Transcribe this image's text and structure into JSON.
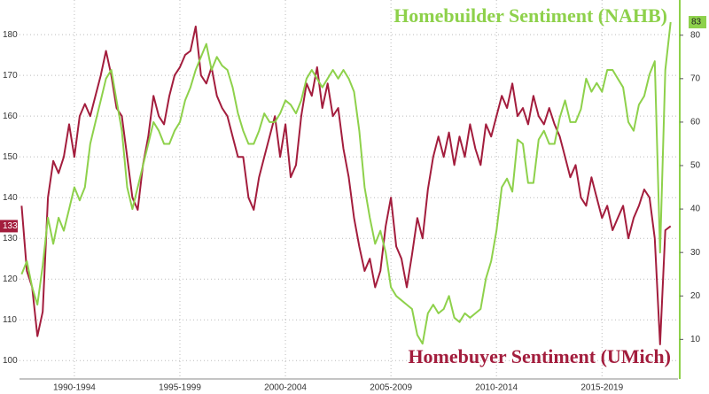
{
  "chart_data": {
    "type": "line",
    "series": [
      {
        "name": "Homebuyer Sentiment (UMich)",
        "color": "#a31d3d",
        "axis": "y",
        "values": [
          138,
          122,
          118,
          106,
          112,
          140,
          149,
          146,
          150,
          158,
          150,
          160,
          163,
          160,
          165,
          170,
          176,
          170,
          162,
          160,
          150,
          140,
          137,
          148,
          155,
          165,
          160,
          158,
          165,
          170,
          172,
          175,
          176,
          182,
          170,
          168,
          172,
          165,
          162,
          160,
          155,
          150,
          150,
          140,
          137,
          145,
          150,
          155,
          160,
          150,
          158,
          145,
          148,
          160,
          168,
          165,
          172,
          162,
          168,
          160,
          162,
          152,
          145,
          135,
          128,
          122,
          125,
          118,
          122,
          133,
          140,
          128,
          125,
          118,
          126,
          135,
          130,
          142,
          150,
          155,
          150,
          156,
          148,
          155,
          150,
          158,
          152,
          148,
          158,
          155,
          160,
          165,
          162,
          168,
          160,
          162,
          158,
          165,
          160,
          158,
          162,
          158,
          155,
          150,
          145,
          148,
          140,
          138,
          145,
          140,
          135,
          138,
          132,
          135,
          138,
          130,
          135,
          138,
          142,
          140,
          130,
          104,
          132,
          133
        ]
      },
      {
        "name": "Homebuilder Sentiment (NAHB)",
        "color": "#8ed14b",
        "axis": "y2",
        "values": [
          25,
          28,
          22,
          18,
          27,
          38,
          32,
          38,
          35,
          40,
          45,
          42,
          45,
          55,
          60,
          65,
          70,
          72,
          65,
          58,
          45,
          40,
          45,
          50,
          55,
          60,
          58,
          55,
          55,
          58,
          60,
          65,
          68,
          72,
          75,
          78,
          72,
          75,
          73,
          72,
          68,
          62,
          58,
          55,
          55,
          58,
          62,
          60,
          60,
          62,
          65,
          64,
          62,
          65,
          70,
          72,
          70,
          68,
          70,
          72,
          70,
          72,
          70,
          67,
          58,
          45,
          38,
          32,
          35,
          30,
          22,
          20,
          19,
          18,
          17,
          11,
          9,
          16,
          18,
          16,
          17,
          20,
          15,
          14,
          16,
          15,
          16,
          17,
          24,
          28,
          35,
          45,
          47,
          44,
          56,
          55,
          46,
          46,
          56,
          58,
          55,
          55,
          61,
          65,
          60,
          60,
          63,
          70,
          67,
          69,
          67,
          72,
          72,
          70,
          68,
          60,
          58,
          64,
          66,
          71,
          74,
          30,
          72,
          83
        ]
      }
    ],
    "x": [
      1990,
      1990.25,
      1990.5,
      1990.75,
      1991,
      1991.25,
      1991.5,
      1991.75,
      1992,
      1992.25,
      1992.5,
      1992.75,
      1993,
      1993.25,
      1993.5,
      1993.75,
      1994,
      1994.25,
      1994.5,
      1994.75,
      1995,
      1995.25,
      1995.5,
      1995.75,
      1996,
      1996.25,
      1996.5,
      1996.75,
      1997,
      1997.25,
      1997.5,
      1997.75,
      1998,
      1998.25,
      1998.5,
      1998.75,
      1999,
      1999.25,
      1999.5,
      1999.75,
      2000,
      2000.25,
      2000.5,
      2000.75,
      2001,
      2001.25,
      2001.5,
      2001.75,
      2002,
      2002.25,
      2002.5,
      2002.75,
      2003,
      2003.25,
      2003.5,
      2003.75,
      2004,
      2004.25,
      2004.5,
      2004.75,
      2005,
      2005.25,
      2005.5,
      2005.75,
      2006,
      2006.25,
      2006.5,
      2006.75,
      2007,
      2007.25,
      2007.5,
      2007.75,
      2008,
      2008.25,
      2008.5,
      2008.75,
      2009,
      2009.25,
      2009.5,
      2009.75,
      2010,
      2010.25,
      2010.5,
      2010.75,
      2011,
      2011.25,
      2011.5,
      2011.75,
      2012,
      2012.25,
      2012.5,
      2012.75,
      2013,
      2013.25,
      2013.5,
      2013.75,
      2014,
      2014.25,
      2014.5,
      2014.75,
      2015,
      2015.25,
      2015.5,
      2015.75,
      2016,
      2016.25,
      2016.5,
      2016.75,
      2017,
      2017.25,
      2017.5,
      2017.75,
      2018,
      2018.25,
      2018.5,
      2018.75,
      2019,
      2019.25,
      2019.5,
      2019.75,
      2020,
      2020.25,
      2020.5,
      2020.75
    ],
    "xlim": [
      1989.9,
      2021.1
    ],
    "xticks": [
      {
        "value": 1992.5,
        "label": "1990-1994"
      },
      {
        "value": 1997.5,
        "label": "1995-1999"
      },
      {
        "value": 2002.5,
        "label": "2000-2004"
      },
      {
        "value": 2007.5,
        "label": "2005-2009"
      },
      {
        "value": 2012.5,
        "label": "2010-2014"
      },
      {
        "value": 2017.5,
        "label": "2015-2019"
      }
    ],
    "ylim": [
      95.5,
      188.5
    ],
    "yticks": [
      100,
      110,
      120,
      130,
      140,
      150,
      160,
      170,
      180
    ],
    "y2lim": [
      0.9,
      88.1
    ],
    "y2ticks": [
      10,
      20,
      30,
      40,
      50,
      60,
      70,
      80
    ],
    "grid": true
  }
}
